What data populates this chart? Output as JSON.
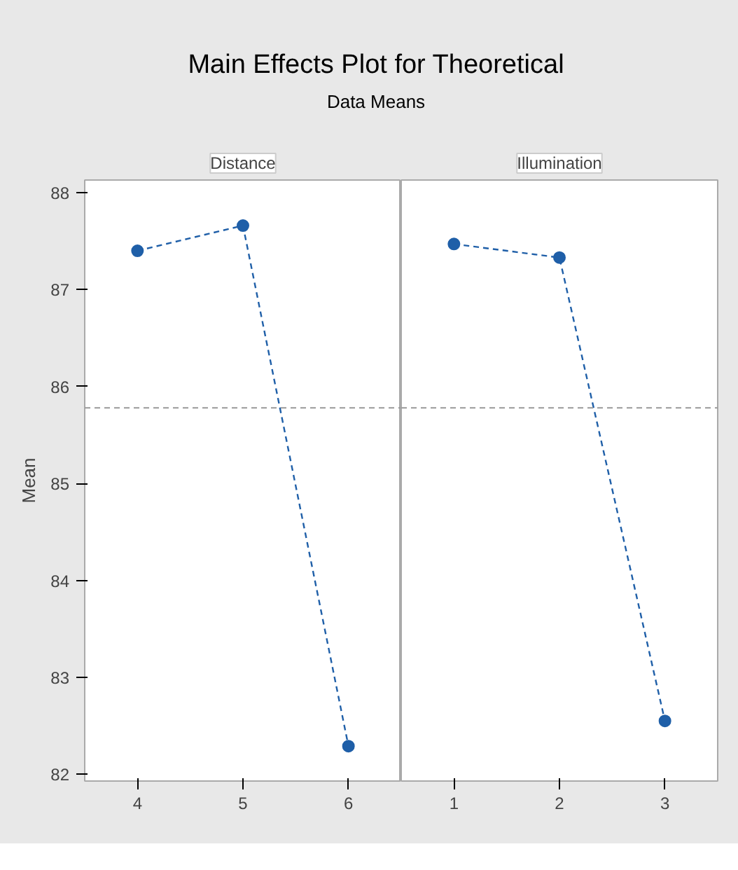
{
  "chart_data": {
    "type": "line",
    "title": "Main Effects Plot for Theoretical",
    "subtitle": "Data Means",
    "ylabel": "Mean",
    "categories": [
      "4",
      "5",
      "6",
      "1",
      "2",
      "3"
    ],
    "series": [
      {
        "color": "#1f5fa8",
        "values": [
          87.4,
          87.66,
          82.29,
          null,
          null,
          null
        ]
      },
      {
        "color": "#1f5fa8",
        "values": [
          null,
          null,
          null,
          87.47,
          87.33,
          82.55
        ]
      }
    ],
    "ylim": [
      81.93,
      88.13
    ],
    "yticks": [
      82,
      83,
      84,
      85,
      86,
      87,
      88
    ],
    "ref_lines": [
      {
        "axis": "y",
        "value": 85.78,
        "color": "#999999",
        "line_style": "dashed"
      }
    ],
    "annotations": [
      "Distance",
      "Illumination"
    ],
    "marker": "circle",
    "line_style": "dashed"
  }
}
